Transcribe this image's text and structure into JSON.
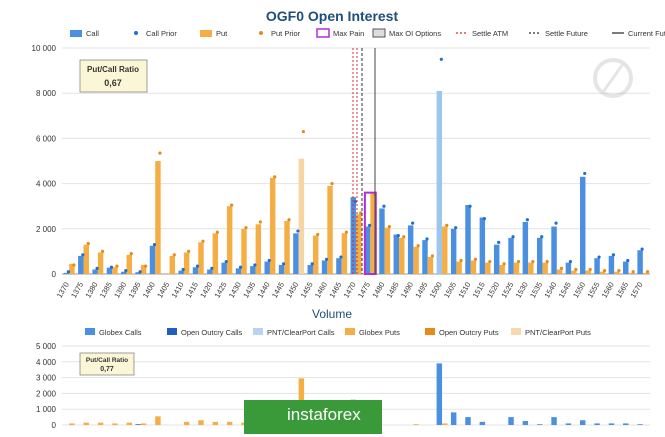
{
  "chart_data": [
    {
      "type": "bar",
      "title": "OGF0 Open Interest",
      "legend_position": "top",
      "legend": [
        "Call",
        "Call Prior",
        "Put",
        "Put Prior",
        "Max Pain",
        "Max OI Options",
        "Settle ATM",
        "Settle Future",
        "Current Future"
      ],
      "colors": {
        "call": "#4a8fe0",
        "call_prior": "#1f6fd1",
        "put": "#f5ae45",
        "put_prior": "#e8891a",
        "max_pain": "#b12fd6",
        "max_oi": "#5ba3e8",
        "settle_atm": "#e02b2b",
        "settle_future": "#333333",
        "current_future": "#444444"
      },
      "ylim": [
        0,
        10000
      ],
      "yticks": [
        "0",
        "2 000",
        "4 000",
        "6 000",
        "8 000",
        "10 000"
      ],
      "grid": true,
      "box": {
        "title": "Put/Call Ratio",
        "value": "0,67"
      },
      "categories": [
        "1370",
        "1375",
        "1380",
        "1385",
        "1390",
        "1395",
        "1400",
        "1405",
        "1410",
        "1415",
        "1420",
        "1425",
        "1430",
        "1435",
        "1440",
        "1445",
        "1450",
        "1455",
        "1460",
        "1465",
        "1470",
        "1475",
        "1480",
        "1485",
        "1490",
        "1495",
        "1500",
        "1505",
        "1510",
        "1515",
        "1520",
        "1525",
        "1530",
        "1535",
        "1540",
        "1545",
        "1550",
        "1555",
        "1560",
        "1565",
        "1570"
      ],
      "calls": [
        50,
        800,
        200,
        280,
        100,
        80,
        1250,
        0,
        150,
        300,
        200,
        500,
        250,
        350,
        550,
        400,
        1800,
        400,
        600,
        700,
        3400,
        2100,
        2900,
        1750,
        2150,
        1500,
        8100,
        2000,
        3050,
        2500,
        1300,
        1600,
        2300,
        1600,
        2100,
        500,
        4300,
        700,
        800,
        550,
        1050
      ],
      "call_prior": [
        100,
        850,
        250,
        300,
        150,
        100,
        1300,
        0,
        200,
        350,
        250,
        550,
        300,
        400,
        600,
        450,
        1900,
        450,
        650,
        750,
        3200,
        2150,
        3000,
        1700,
        2250,
        1550,
        9500,
        2050,
        3000,
        2450,
        1400,
        1650,
        2400,
        1650,
        2250,
        550,
        4450,
        750,
        850,
        600,
        1100
      ],
      "puts": [
        450,
        1300,
        950,
        300,
        850,
        400,
        5000,
        800,
        950,
        1400,
        1800,
        3000,
        2000,
        2200,
        4250,
        2350,
        5100,
        1700,
        3900,
        1800,
        2650,
        3600,
        2050,
        1600,
        1200,
        750,
        2100,
        550,
        600,
        500,
        400,
        500,
        500,
        500,
        200,
        150,
        150,
        100,
        100,
        50,
        50
      ],
      "put_prior": [
        400,
        1350,
        1000,
        350,
        900,
        350,
        5350,
        850,
        1000,
        1450,
        1850,
        3050,
        2050,
        2300,
        4300,
        2400,
        6300,
        1750,
        4000,
        1850,
        2700,
        3500,
        2100,
        1650,
        1250,
        800,
        2150,
        600,
        650,
        550,
        450,
        550,
        550,
        550,
        250,
        200,
        200,
        150,
        150,
        100,
        100
      ],
      "max_oi_index": [
        16,
        26
      ],
      "max_pain_strike": "1475",
      "settle_atm_strike": "1470"
    },
    {
      "type": "bar",
      "title": "Volume",
      "legend_position": "top",
      "legend": [
        "Globex Calls",
        "Open Outcry Calls",
        "PNT/ClearPort Calls",
        "Globex Puts",
        "Open Outcry Puts",
        "PNT/ClearPort Puts"
      ],
      "colors": {
        "globex_calls": "#4a8fe0",
        "oo_calls": "#1f5fc0",
        "pnt_calls": "#b8d4f0",
        "globex_puts": "#f5ae45",
        "oo_puts": "#e8891a",
        "pnt_puts": "#f6d9b0"
      },
      "ylim": [
        0,
        5000
      ],
      "yticks": [
        "0",
        "1 000",
        "2 000",
        "3 000",
        "4 000",
        "5 000"
      ],
      "grid": true,
      "box": {
        "title": "Put/Call Ratio",
        "value": "0,77"
      },
      "calls": [
        0,
        0,
        0,
        0,
        0,
        60,
        0,
        0,
        0,
        0,
        0,
        0,
        0,
        0,
        0,
        0,
        80,
        0,
        0,
        0,
        1600,
        0,
        0,
        0,
        0,
        0,
        3900,
        800,
        500,
        200,
        0,
        500,
        250,
        50,
        500,
        100,
        300,
        100,
        100,
        100,
        50
      ],
      "puts": [
        100,
        150,
        150,
        100,
        150,
        100,
        550,
        0,
        200,
        300,
        200,
        200,
        150,
        200,
        150,
        100,
        2950,
        50,
        250,
        200,
        0,
        0,
        0,
        0,
        50,
        0,
        100,
        0,
        0,
        0,
        0,
        0,
        0,
        0,
        0,
        0,
        0,
        0,
        0,
        0,
        0
      ]
    }
  ],
  "watermark": "instaforex"
}
